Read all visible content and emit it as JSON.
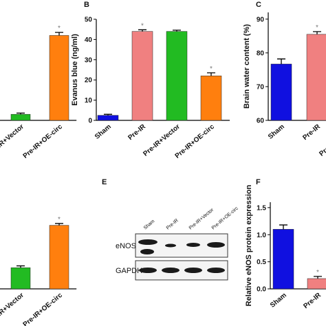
{
  "chart_data": [
    {
      "type": "bar",
      "categories": [
        "Pre-IR+Vector",
        "Pre-IR+OE-circ"
      ],
      "values": [
        3,
        42
      ],
      "errors": [
        0.6,
        1.5
      ],
      "colors": [
        "#22bb22",
        "#ff7f0e"
      ],
      "significance": [
        null,
        "*"
      ],
      "ylim": [
        0,
        50
      ]
    },
    {
      "type": "bar",
      "label": "B",
      "ylabel": "Evanus blue (ng/ml)",
      "categories": [
        "Sham",
        "Pre-IR",
        "Pre-IR+Vector",
        "Pre-IR+OE-circ"
      ],
      "values": [
        2.5,
        44,
        44,
        22
      ],
      "errors": [
        0.5,
        0.8,
        0.6,
        1.5
      ],
      "colors": [
        "#1010e0",
        "#f08080",
        "#22bb22",
        "#ff7f0e"
      ],
      "significance": [
        null,
        "*",
        null,
        "*"
      ],
      "ylim": [
        0,
        50
      ],
      "yticks": [
        0,
        10,
        20,
        30,
        40,
        50
      ]
    },
    {
      "type": "bar",
      "label": "C",
      "ylabel": "Brain water content (%)",
      "categories": [
        "Sham",
        "Pre-IR",
        "Pre-IR+Vector"
      ],
      "values": [
        76.7,
        85.5,
        null
      ],
      "errors": [
        1.5,
        0.8,
        null
      ],
      "colors": [
        "#1010e0",
        "#f08080",
        "#22bb22"
      ],
      "significance": [
        null,
        "*",
        null
      ],
      "ylim": [
        60,
        92
      ],
      "yticks": [
        60,
        70,
        80,
        90
      ]
    },
    {
      "type": "bar",
      "categories": [
        "Pre-IR+Vector",
        "Pre-IR+OE-circ"
      ],
      "values": [
        14,
        42
      ],
      "errors": [
        1.2,
        1.2
      ],
      "colors": [
        "#22bb22",
        "#ff7f0e"
      ],
      "significance": [
        null,
        "*"
      ],
      "ylim": [
        0,
        50
      ]
    },
    {
      "type": "bar",
      "label": "F",
      "ylabel": "Relative eNOS protein expression",
      "categories": [
        "Sham",
        "Pre-IR"
      ],
      "values": [
        1.1,
        0.19
      ],
      "errors": [
        0.08,
        0.04
      ],
      "colors": [
        "#1010e0",
        "#f08080"
      ],
      "significance": [
        null,
        "*"
      ],
      "ylim": [
        0,
        1.6
      ],
      "yticks": [
        {
          "value": 0,
          "label": "0.0"
        },
        0.5,
        {
          "value": 1,
          "label": "1.0"
        },
        1.5
      ]
    }
  ],
  "blot": {
    "label": "E",
    "lanes": [
      "Sham",
      "Pre-IR",
      "Pre-IR+Vector",
      "Pre-IR+OE-circ"
    ],
    "rows": [
      "eNOS",
      "GAPDH"
    ]
  }
}
